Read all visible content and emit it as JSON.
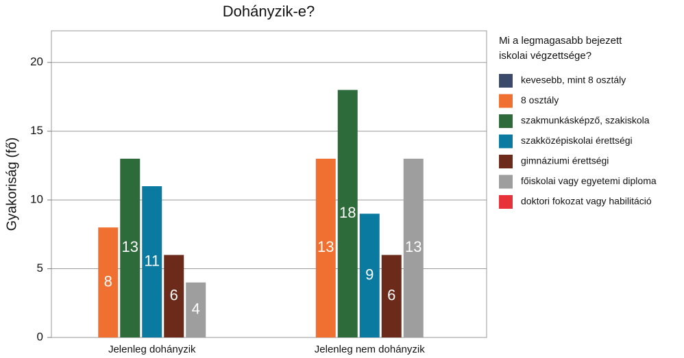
{
  "chart_data": {
    "type": "bar",
    "title": "Dohányzik-e?",
    "y_label": "Gyakoriság (fő)",
    "legend_title": [
      "Mi a legmagasabb bejezett",
      "iskolai végzettsége?"
    ],
    "categories": [
      "Jelenleg dohányzik",
      "Jelenleg nem dohányzik"
    ],
    "series": [
      {
        "name": "kevesebb, mint 8 osztály",
        "color": "#3b4a6b",
        "values": [
          0,
          0
        ]
      },
      {
        "name": "8 osztály",
        "color": "#ef7030",
        "values": [
          8,
          13
        ]
      },
      {
        "name": "szakmunkásképző, szakiskola",
        "color": "#2e6b3a",
        "values": [
          13,
          18
        ]
      },
      {
        "name": "szakközépiskolai érettségi",
        "color": "#0a7aa0",
        "values": [
          11,
          9
        ]
      },
      {
        "name": "gimnáziumi érettségi",
        "color": "#6b2a1a",
        "values": [
          6,
          6
        ]
      },
      {
        "name": "főiskolai vagy egyetemi diploma",
        "color": "#9e9e9e",
        "values": [
          4,
          13
        ]
      },
      {
        "name": "doktori fokozat vagy habilitáció",
        "color": "#e8323a",
        "values": [
          0,
          0
        ]
      }
    ],
    "ylim": [
      0,
      22.3
    ],
    "yticks": [
      0,
      5,
      10,
      15,
      20
    ],
    "grid": true,
    "legend": "right"
  }
}
